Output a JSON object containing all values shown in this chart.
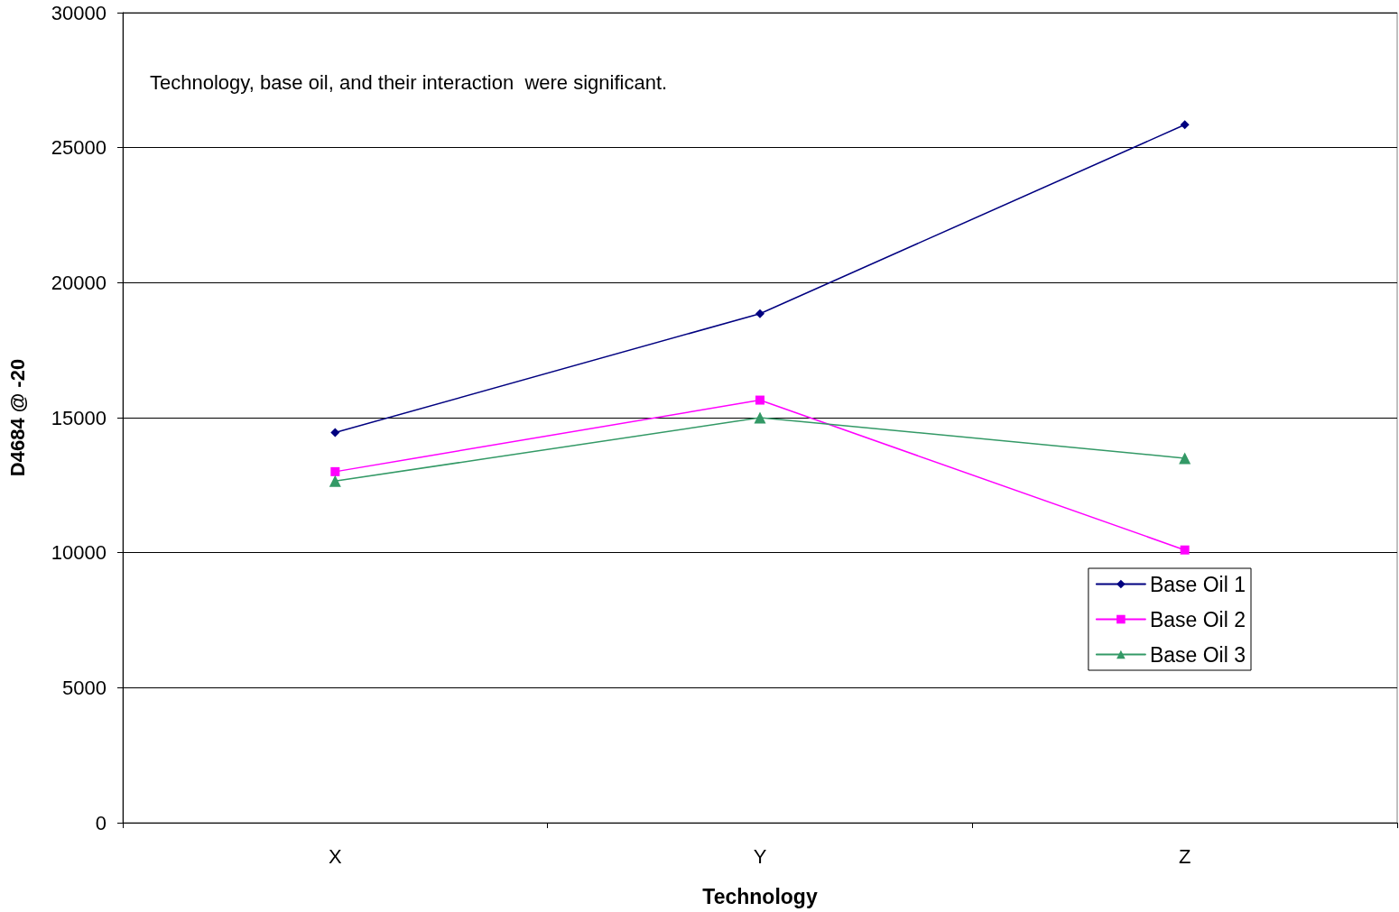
{
  "chart_data": {
    "type": "line",
    "xlabel": "Technology",
    "ylabel": "D4684 @ -20",
    "categories": [
      "X",
      "Y",
      "Z"
    ],
    "series": [
      {
        "name": "Base Oil 1",
        "color": "#000080",
        "marker": "diamond",
        "values": [
          14450,
          18850,
          25850
        ]
      },
      {
        "name": "Base Oil 2",
        "color": "#ff00ff",
        "marker": "square",
        "values": [
          13000,
          15650,
          10100
        ]
      },
      {
        "name": "Base Oil 3",
        "color": "#339966",
        "marker": "triangle",
        "values": [
          12650,
          15000,
          13500
        ]
      }
    ],
    "ylim": [
      0,
      30000
    ],
    "yticks": [
      0,
      5000,
      10000,
      15000,
      20000,
      25000,
      30000
    ],
    "grid": "y",
    "legend": "bottom right",
    "line_style": "solid",
    "annotations": [
      "Technology, base oil, and their interaction  were significant."
    ]
  }
}
